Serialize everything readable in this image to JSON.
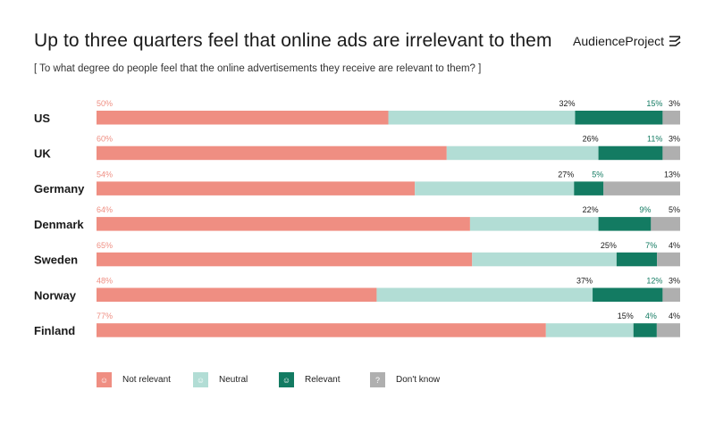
{
  "header": {
    "title": "Up to three quarters feel that online ads are irrelevant to them",
    "subtitle": "[ To what degree do people feel that the online advertisements they receive are relevant to them? ]",
    "brand": "AudienceProject"
  },
  "colors": {
    "not_relevant": "#EF8E82",
    "neutral": "#B2DDD5",
    "relevant": "#137B62",
    "dont_know": "#AFAFAF",
    "label_not_relevant": "#EF8E82",
    "label_relevant": "#137B62",
    "label_default": "#1a1a1a"
  },
  "chart_data": {
    "type": "bar",
    "orientation": "horizontal",
    "stacked": true,
    "categories": [
      "US",
      "UK",
      "Germany",
      "Denmark",
      "Sweden",
      "Norway",
      "Finland"
    ],
    "series": [
      {
        "name": "Not relevant",
        "values": [
          50,
          60,
          54,
          64,
          65,
          48,
          77
        ]
      },
      {
        "name": "Neutral",
        "values": [
          32,
          26,
          27,
          22,
          25,
          37,
          15
        ]
      },
      {
        "name": "Relevant",
        "values": [
          15,
          11,
          5,
          9,
          7,
          12,
          4
        ]
      },
      {
        "name": "Don't know",
        "values": [
          3,
          3,
          13,
          5,
          4,
          3,
          4
        ]
      }
    ],
    "value_suffix": "%",
    "legend": "bottom-left",
    "grid": false
  },
  "legend": {
    "items": [
      {
        "label": "Not relevant",
        "glyph": "☺",
        "icon": "smiley-neutral-icon"
      },
      {
        "label": "Neutral",
        "glyph": "☺",
        "icon": "smiley-neutral-icon"
      },
      {
        "label": "Relevant",
        "glyph": "☺",
        "icon": "smiley-happy-icon"
      },
      {
        "label": "Don't know",
        "glyph": "?",
        "icon": "question-icon"
      }
    ]
  }
}
